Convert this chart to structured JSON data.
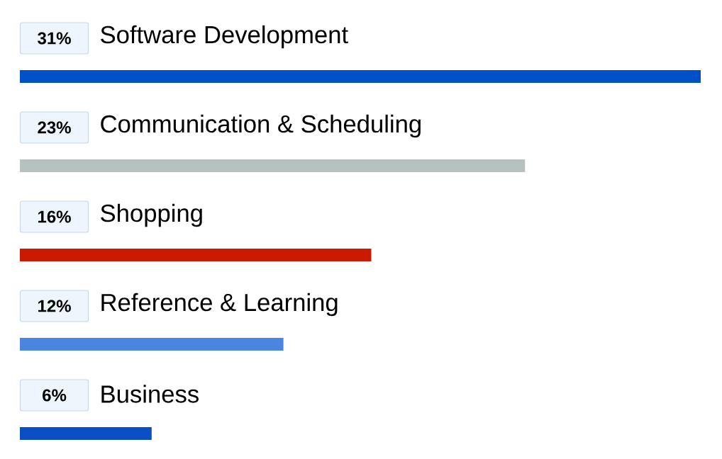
{
  "chart_data": {
    "type": "bar",
    "orientation": "horizontal",
    "categories": [
      "Software Development",
      "Communication & Scheduling",
      "Shopping",
      "Reference & Learning",
      "Business"
    ],
    "values": [
      31,
      23,
      16,
      12,
      6
    ],
    "value_labels": [
      "31%",
      "23%",
      "16%",
      "12%",
      "6%"
    ],
    "colors": [
      "#0050c8",
      "#b7c1bf",
      "#cc1a00",
      "#4a86e0",
      "#0b4fc4"
    ]
  }
}
